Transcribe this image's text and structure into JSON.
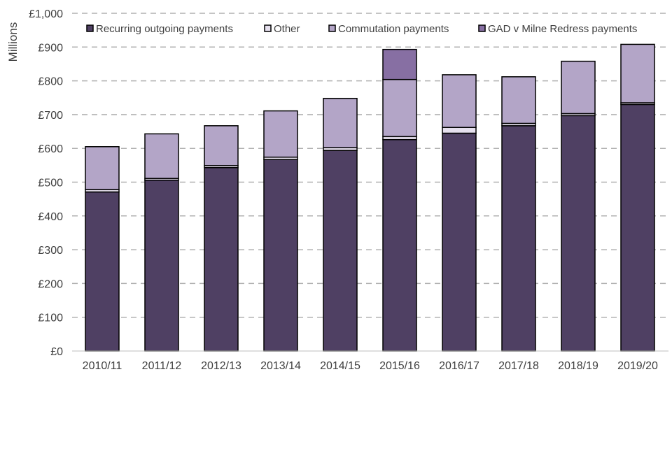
{
  "chart_data": {
    "type": "bar",
    "stacked": true,
    "title": "",
    "xlabel": "",
    "ylabel": "Millions",
    "ylim": [
      0,
      1000
    ],
    "yticks": [
      0,
      100,
      200,
      300,
      400,
      500,
      600,
      700,
      800,
      900,
      1000
    ],
    "ytick_labels": [
      "£0",
      "£100",
      "£200",
      "£300",
      "£400",
      "£500",
      "£600",
      "£700",
      "£800",
      "£900",
      "£1,000"
    ],
    "grid": "horizontal dashed",
    "legend_position": "top",
    "categories": [
      "2010/11",
      "2011/12",
      "2012/13",
      "2013/14",
      "2014/15",
      "2015/16",
      "2016/17",
      "2017/18",
      "2018/19",
      "2019/20"
    ],
    "series": [
      {
        "name": "Recurring outgoing payments",
        "color": "#4f4063",
        "values": [
          471,
          506,
          543,
          567,
          594,
          626,
          645,
          667,
          697,
          730
        ]
      },
      {
        "name": "Other",
        "color": "#e6e0ee",
        "values": [
          7,
          5,
          6,
          7,
          8,
          9,
          17,
          7,
          6,
          5
        ]
      },
      {
        "name": "Commutation payments",
        "color": "#b3a5c7",
        "values": [
          127,
          132,
          118,
          137,
          146,
          169,
          156,
          138,
          155,
          173
        ]
      },
      {
        "name": "GAD v Milne Redress payments",
        "color": "#876fa3",
        "values": [
          0,
          0,
          0,
          0,
          0,
          89,
          0,
          0,
          0,
          0
        ]
      }
    ]
  }
}
